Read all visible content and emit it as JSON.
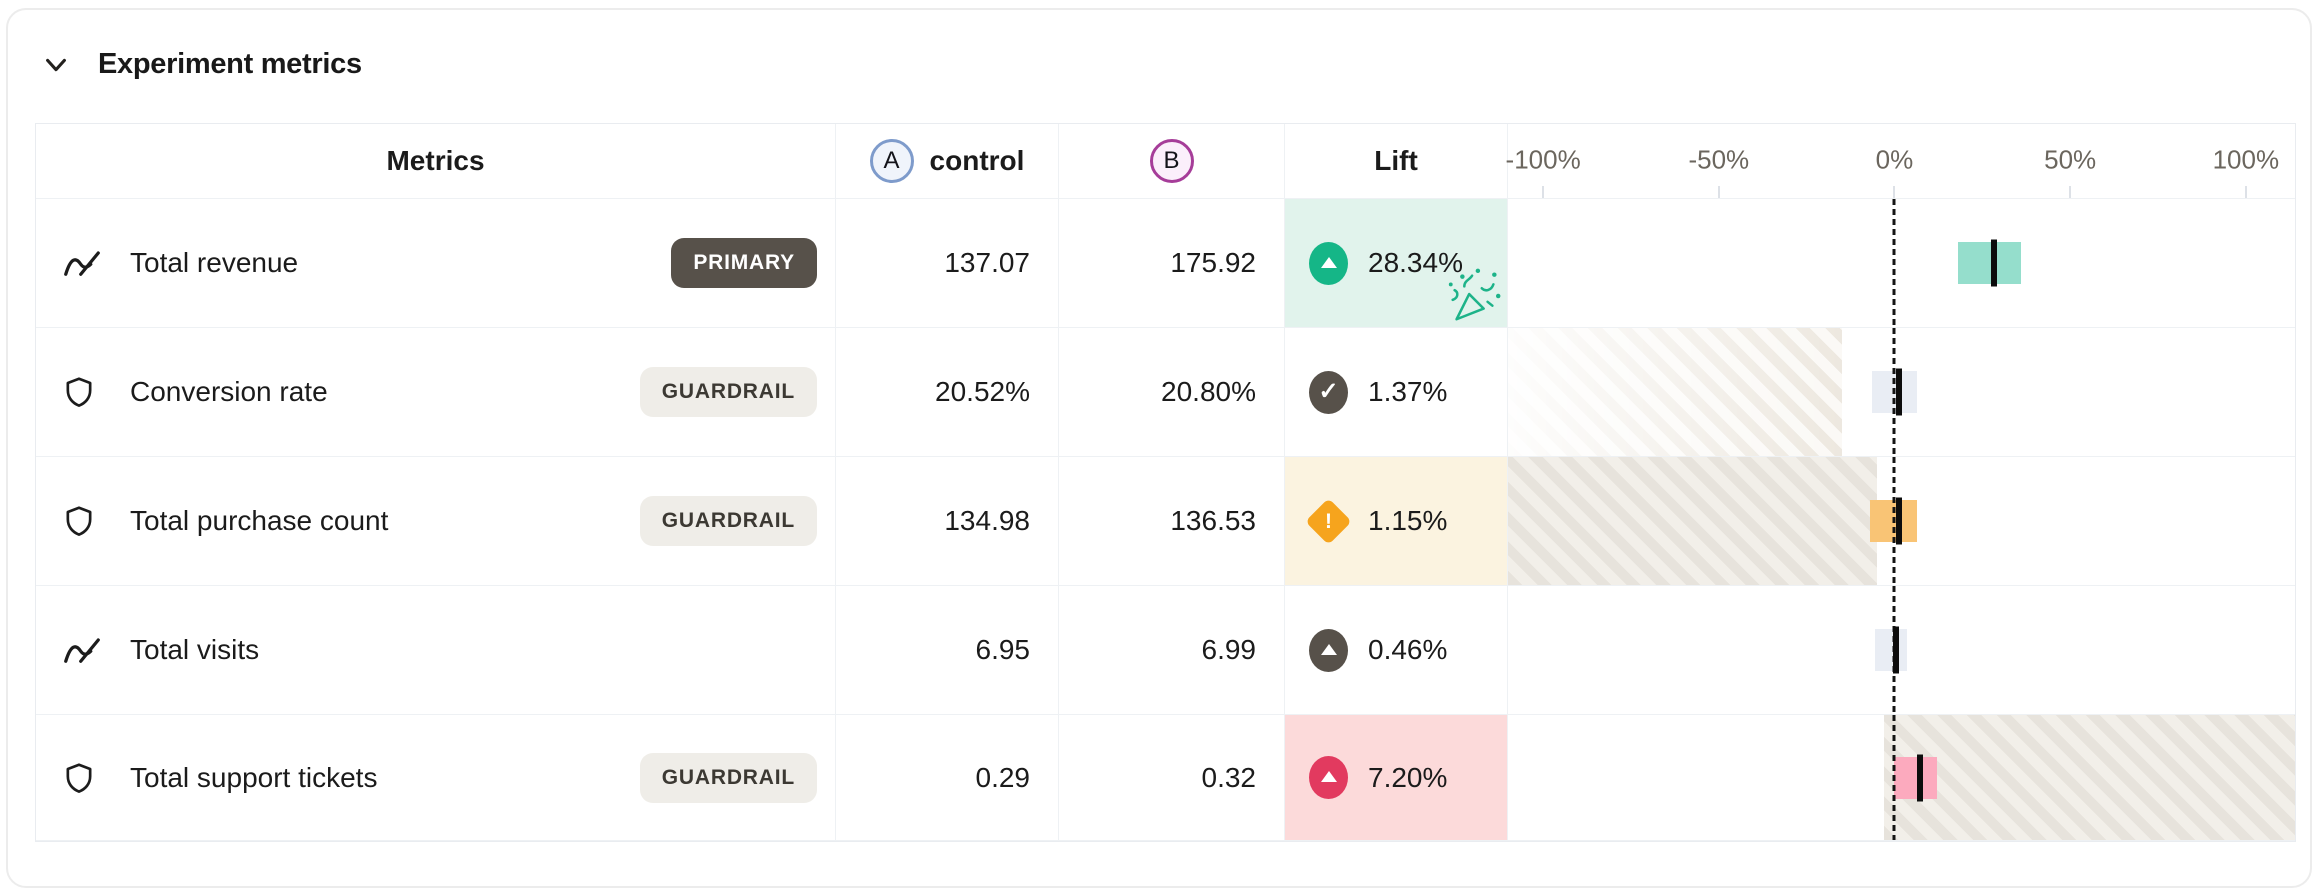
{
  "panel": {
    "title": "Experiment metrics"
  },
  "table": {
    "columns": {
      "metrics": "Metrics",
      "control": "control",
      "lift": "Lift"
    },
    "variants": {
      "a": "A",
      "b": "B",
      "a_color": "#7e9bcb",
      "b_color": "#a63d99"
    },
    "axis": {
      "min": -110,
      "max": 114,
      "zero": 0,
      "ticks": [
        {
          "label": "-100%",
          "value": -100
        },
        {
          "label": "-50%",
          "value": -50
        },
        {
          "label": "0%",
          "value": 0
        },
        {
          "label": "50%",
          "value": 50
        },
        {
          "label": "100%",
          "value": 100
        }
      ]
    },
    "rows": [
      {
        "name": "Total revenue",
        "icon": "trend-line-icon",
        "badge": "PRIMARY",
        "badge_style": "primary",
        "control": "137.07",
        "treatment": "175.92",
        "lift": "28.34%",
        "lift_value": 28.34,
        "status": "positive",
        "status_icon": "arrow-up-icon",
        "status_color": "#15b687",
        "lift_bg": "#e1f3ec",
        "celebration": true,
        "bar": {
          "low": 18,
          "high": 36,
          "color": "#95decc"
        },
        "zone": null
      },
      {
        "name": "Conversion rate",
        "icon": "shield-icon",
        "badge": "GUARDRAIL",
        "badge_style": "guardrail",
        "control": "20.52%",
        "treatment": "20.80%",
        "lift": "1.37%",
        "lift_value": 1.37,
        "status": "pass",
        "status_icon": "check-icon",
        "status_color": "#57514a",
        "lift_bg": null,
        "celebration": false,
        "bar": {
          "low": -6.5,
          "high": 6.5,
          "color": "#e9edf4"
        },
        "zone": {
          "from": -110,
          "to": -15,
          "fade": true
        }
      },
      {
        "name": "Total purchase count",
        "icon": "shield-icon",
        "badge": "GUARDRAIL",
        "badge_style": "guardrail",
        "control": "134.98",
        "treatment": "136.53",
        "lift": "1.15%",
        "lift_value": 1.15,
        "status": "warning",
        "status_icon": "warning-diamond-icon",
        "status_color": "#f6a41d",
        "lift_bg": "#fbf3e0",
        "celebration": false,
        "bar": {
          "low": -7,
          "high": 6.5,
          "color": "#f9c475"
        },
        "zone": {
          "from": -110,
          "to": -5,
          "fade": false
        }
      },
      {
        "name": "Total visits",
        "icon": "trend-line-icon",
        "badge": null,
        "badge_style": null,
        "control": "6.95",
        "treatment": "6.99",
        "lift": "0.46%",
        "lift_value": 0.46,
        "status": "neutral",
        "status_icon": "arrow-up-icon",
        "status_color": "#57514a",
        "lift_bg": null,
        "celebration": false,
        "bar": {
          "low": -5.5,
          "high": 3.5,
          "color": "#e9edf4"
        },
        "zone": null
      },
      {
        "name": "Total support tickets",
        "icon": "shield-icon",
        "badge": "GUARDRAIL",
        "badge_style": "guardrail",
        "control": "0.29",
        "treatment": "0.32",
        "lift": "7.20%",
        "lift_value": 7.2,
        "status": "negative",
        "status_icon": "arrow-up-icon",
        "status_color": "#e23a5f",
        "lift_bg": "#fcdada",
        "celebration": false,
        "bar": {
          "low": 0,
          "high": 12,
          "color": "#fcaabe"
        },
        "zone": {
          "from": -3,
          "to": 114,
          "fade": false
        }
      }
    ]
  },
  "colors": {
    "positive": "#15b687",
    "negative": "#e23a5f",
    "warning": "#f6a41d",
    "neutral": "#57514a",
    "zero_line": "#141414",
    "hatch": "#e7e3dc",
    "border": "#eef1f4"
  }
}
